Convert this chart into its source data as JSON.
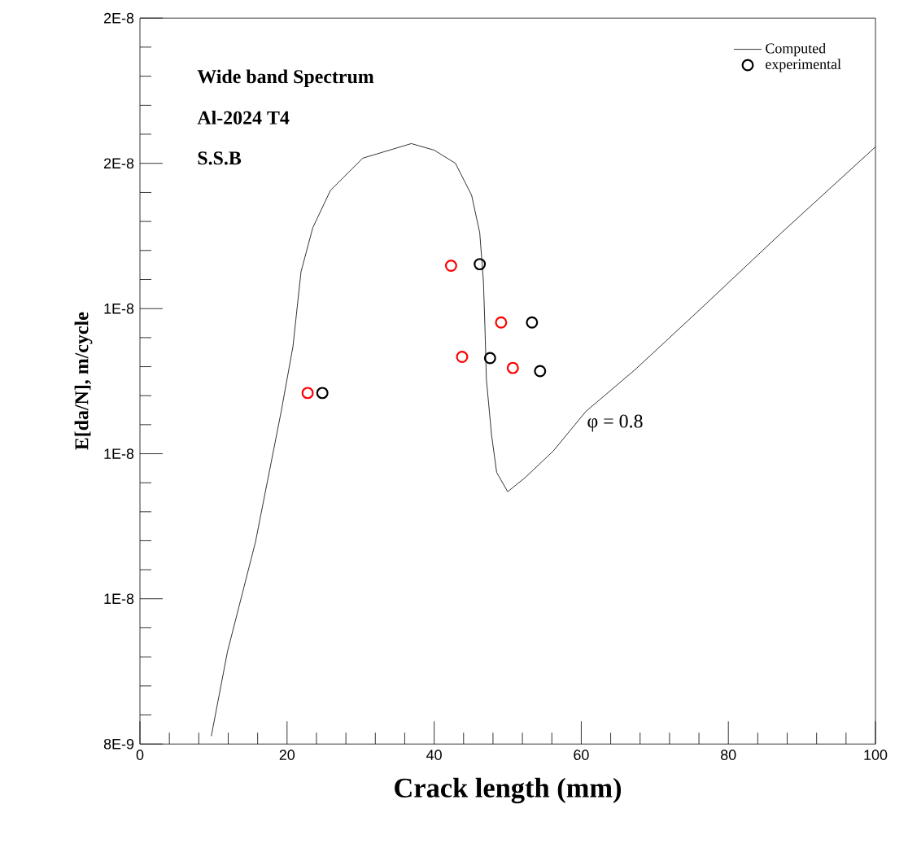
{
  "chart_data": {
    "type": "line",
    "xlabel": "Crack length (mm)",
    "ylabel": "E[da/N], m/cycle",
    "log": "y",
    "legend": "top right",
    "xlim": [
      0,
      100
    ],
    "ylim": [
      8e-09,
      2e-08
    ],
    "xticks": [
      0,
      20,
      40,
      60,
      80,
      100
    ],
    "yticks": [
      {
        "value": 8e-09,
        "label": "8E-9"
      },
      {
        "value": 9.61e-09,
        "label": "1E-8"
      },
      {
        "value": 1.154e-08,
        "label": "1E-8"
      },
      {
        "value": 1.386e-08,
        "label": "1E-8"
      },
      {
        "value": 1.665e-08,
        "label": "2E-8"
      },
      {
        "value": 2e-08,
        "label": "2E-8"
      }
    ],
    "annotations": [
      "Wide band Spectrum",
      "Al-2024 T4",
      "S.S.B",
      "φ = 0.8"
    ],
    "series": [
      {
        "name": "Computed",
        "color": "#000000",
        "marker": "none",
        "x": [
          9.7,
          11.9,
          15.7,
          19.2,
          20.8,
          21.9,
          23.5,
          25.9,
          30.3,
          36.9,
          40.0,
          42.9,
          45.1,
          46.2,
          46.7,
          46.9,
          47.1,
          47.8,
          48.5,
          50.0,
          52.4,
          56.2,
          60.6,
          67.3,
          76.1,
          87.2,
          100
        ],
        "values": [
          8.08e-09,
          8.99e-09,
          1.032e-08,
          1.217e-08,
          1.321e-08,
          1.452e-08,
          1.535e-08,
          1.609e-08,
          1.676e-08,
          1.707e-08,
          1.693e-08,
          1.665e-08,
          1.599e-08,
          1.525e-08,
          1.434e-08,
          1.356e-08,
          1.268e-08,
          1.182e-08,
          1.127e-08,
          1.1e-08,
          1.12e-08,
          1.158e-08,
          1.217e-08,
          1.283e-08,
          1.384e-08,
          1.525e-08,
          1.7e-08
        ]
      },
      {
        "name": "experimental",
        "type": "scatter",
        "color": "#000000",
        "marker": "circle",
        "x": [
          24.8,
          46.2,
          53.3,
          47.6,
          54.4
        ],
        "values": [
          1.246e-08,
          1.466e-08,
          1.362e-08,
          1.302e-08,
          1.281e-08
        ]
      },
      {
        "type": "scatter",
        "color": "#ff0000",
        "marker": "circle",
        "x": [
          22.8,
          42.3,
          49.1,
          43.8,
          50.7
        ],
        "values": [
          1.246e-08,
          1.463e-08,
          1.362e-08,
          1.304e-08,
          1.286e-08
        ]
      }
    ]
  }
}
